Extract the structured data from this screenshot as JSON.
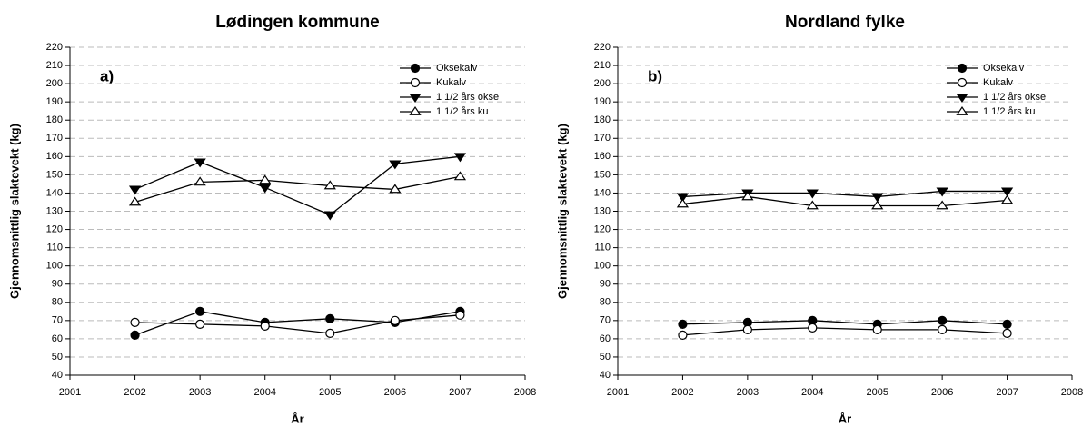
{
  "chart_data": [
    {
      "type": "line",
      "title": "Lødingen kommune",
      "panel_label": "a)",
      "x_label": "År",
      "y_label": "Gjennomsnittlig slaktevekt (kg)",
      "x": [
        2002,
        2003,
        2004,
        2005,
        2006,
        2007
      ],
      "xlim": [
        2001,
        2008
      ],
      "xticks": [
        2001,
        2002,
        2003,
        2004,
        2005,
        2006,
        2007,
        2008
      ],
      "ylim": [
        40,
        220
      ],
      "yticks": [
        40,
        50,
        60,
        70,
        80,
        90,
        100,
        110,
        120,
        130,
        140,
        150,
        160,
        170,
        180,
        190,
        200,
        210,
        220
      ],
      "grid": true,
      "legend": "upper-right",
      "series": [
        {
          "name": "Oksekalv",
          "color": "#000000",
          "marker": "circle",
          "filled": true,
          "values": [
            62,
            75,
            69,
            71,
            69,
            75
          ]
        },
        {
          "name": "Kukalv",
          "color": "#000000",
          "marker": "circle",
          "filled": false,
          "values": [
            69,
            68,
            67,
            63,
            70,
            73
          ]
        },
        {
          "name": "1 1/2 års okse",
          "color": "#000000",
          "marker": "triangle-down",
          "filled": true,
          "values": [
            142,
            157,
            143,
            128,
            156,
            160
          ]
        },
        {
          "name": "1 1/2 års ku",
          "color": "#000000",
          "marker": "triangle-up",
          "filled": false,
          "values": [
            135,
            146,
            147,
            144,
            142,
            149
          ]
        }
      ]
    },
    {
      "type": "line",
      "title": "Nordland fylke",
      "panel_label": "b)",
      "x_label": "År",
      "y_label": "Gjennomsnittlig slaktevekt (kg)",
      "x": [
        2002,
        2003,
        2004,
        2005,
        2006,
        2007
      ],
      "xlim": [
        2001,
        2008
      ],
      "xticks": [
        2001,
        2002,
        2003,
        2004,
        2005,
        2006,
        2007,
        2008
      ],
      "ylim": [
        40,
        220
      ],
      "yticks": [
        40,
        50,
        60,
        70,
        80,
        90,
        100,
        110,
        120,
        130,
        140,
        150,
        160,
        170,
        180,
        190,
        200,
        210,
        220
      ],
      "grid": true,
      "legend": "upper-right",
      "series": [
        {
          "name": "Oksekalv",
          "color": "#000000",
          "marker": "circle",
          "filled": true,
          "values": [
            68,
            69,
            70,
            68,
            70,
            68
          ]
        },
        {
          "name": "Kukalv",
          "color": "#000000",
          "marker": "circle",
          "filled": false,
          "values": [
            62,
            65,
            66,
            65,
            65,
            63
          ]
        },
        {
          "name": "1 1/2 års okse",
          "color": "#000000",
          "marker": "triangle-down",
          "filled": true,
          "values": [
            138,
            140,
            140,
            138,
            141,
            141
          ]
        },
        {
          "name": "1 1/2 års ku",
          "color": "#000000",
          "marker": "triangle-up",
          "filled": false,
          "values": [
            134,
            138,
            133,
            133,
            133,
            136
          ]
        }
      ]
    }
  ]
}
